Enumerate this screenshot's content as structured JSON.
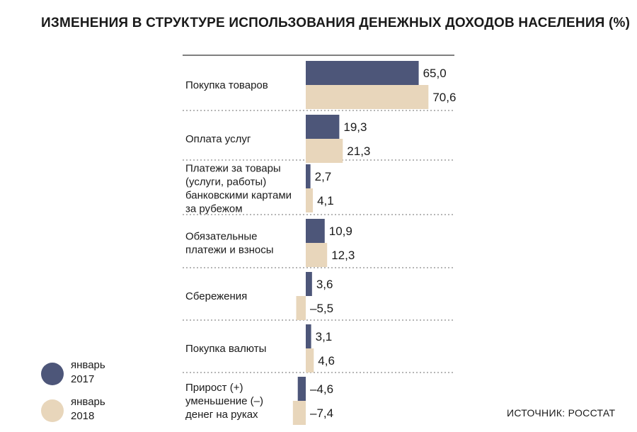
{
  "title": "ИЗМЕНЕНИЯ В СТРУКТУРЕ  ИСПОЛЬЗОВАНИЯ ДЕНЕЖНЫХ  ДОХОДОВ НАСЕЛЕНИЯ (%)",
  "source": "ИСТОЧНИК: РОССТАТ",
  "colors": {
    "series_2017": "#4d5679",
    "series_2018": "#e8d6bb",
    "divider": "#8a8a8a"
  },
  "chart_data": {
    "type": "bar",
    "orientation": "horizontal",
    "title": "ИЗМЕНЕНИЯ В СТРУКТУРЕ  ИСПОЛЬЗОВАНИЯ ДЕНЕЖНЫХ  ДОХОДОВ НАСЕЛЕНИЯ (%)",
    "categories": [
      "Покупка товаров",
      "Оплата услуг",
      "Платежи за товары\n(услуги, работы)\nбанковскими картами\nза рубежом",
      "Обязательные\nплатежи и взносы",
      "Сбережения",
      "Покупка валюты",
      "Прирост (+)\nуменьшение (–)\nденег на руках"
    ],
    "series": [
      {
        "name": "январь\n2017",
        "values": [
          65.0,
          19.3,
          2.7,
          10.9,
          3.6,
          3.1,
          -4.6
        ],
        "labels": [
          "65,0",
          "19,3",
          "2,7",
          "10,9",
          "3,6",
          "3,1",
          "–4,6"
        ]
      },
      {
        "name": "январь\n2018",
        "values": [
          70.6,
          21.3,
          4.1,
          12.3,
          -5.5,
          4.6,
          -7.4
        ],
        "labels": [
          "70,6",
          "21,3",
          "4,1",
          "12,3",
          "–5,5",
          "4,6",
          "–7,4"
        ]
      }
    ],
    "legend_position": "bottom-left",
    "grid": false
  }
}
